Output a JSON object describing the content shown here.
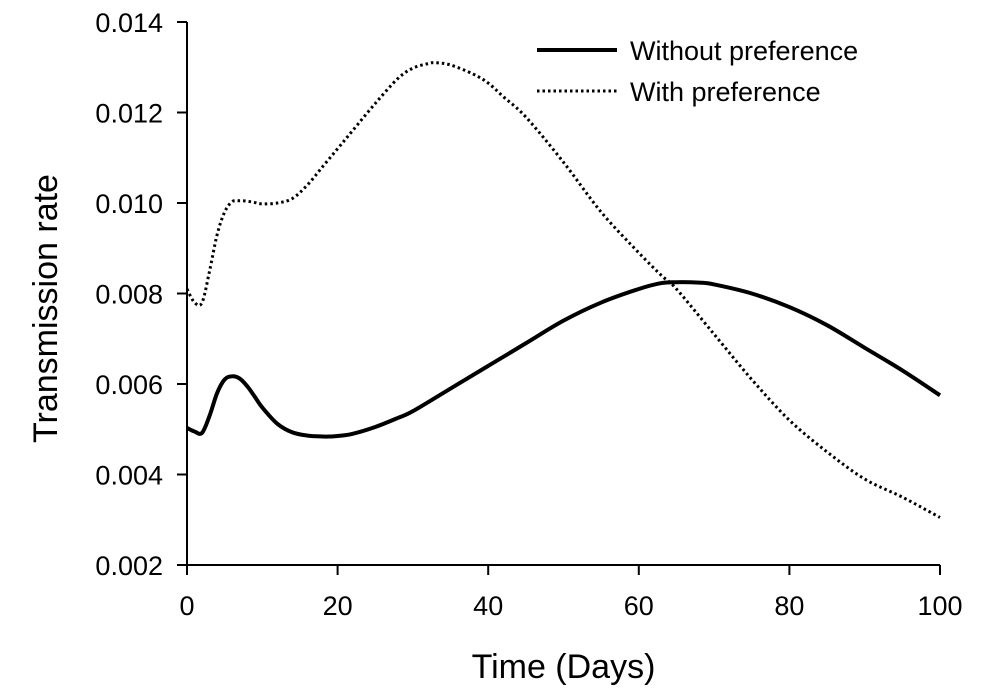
{
  "chart_data": {
    "type": "line",
    "xlabel": "Time (Days)",
    "ylabel": "Transmission rate",
    "xlim": [
      0,
      100
    ],
    "ylim": [
      0.002,
      0.014
    ],
    "xticks": [
      0,
      20,
      40,
      60,
      80,
      100
    ],
    "xtick_labels": [
      "0",
      "20",
      "40",
      "60",
      "80",
      "100"
    ],
    "yticks": [
      0.002,
      0.004,
      0.006,
      0.008,
      0.01,
      0.012,
      0.014
    ],
    "ytick_labels": [
      "0.002",
      "0.004",
      "0.006",
      "0.008",
      "0.010",
      "0.012",
      "0.014"
    ],
    "grid": false,
    "legend_position": "top-right",
    "series": [
      {
        "name": "Without preference",
        "line_style": "solid",
        "color": "#000000",
        "x": [
          0,
          1,
          2,
          3,
          4,
          5,
          6,
          7,
          8,
          9,
          10,
          12,
          14,
          16,
          18,
          19,
          20,
          22,
          25,
          28,
          30,
          35,
          40,
          45,
          50,
          55,
          60,
          63,
          65,
          68,
          70,
          75,
          80,
          85,
          90,
          95,
          100
        ],
        "y": [
          0.00503,
          0.00495,
          0.00492,
          0.0053,
          0.0058,
          0.0061,
          0.00617,
          0.00612,
          0.00595,
          0.00572,
          0.00548,
          0.00512,
          0.00493,
          0.00486,
          0.00484,
          0.00484,
          0.00485,
          0.0049,
          0.00505,
          0.00525,
          0.0054,
          0.0059,
          0.0064,
          0.0069,
          0.0074,
          0.0078,
          0.0081,
          0.00823,
          0.00825,
          0.00824,
          0.0082,
          0.008,
          0.0077,
          0.0073,
          0.0068,
          0.0063,
          0.00575
        ]
      },
      {
        "name": "With preference",
        "line_style": "dotted",
        "color": "#000000",
        "x": [
          0,
          1,
          2,
          3,
          4,
          5,
          6,
          7,
          8,
          9,
          10,
          12,
          14,
          16,
          18,
          20,
          22,
          25,
          28,
          30,
          32,
          33,
          35,
          38,
          40,
          42,
          45,
          50,
          55,
          60,
          63,
          65,
          70,
          75,
          80,
          85,
          90,
          95,
          100
        ],
        "y": [
          0.0081,
          0.0078,
          0.0078,
          0.0085,
          0.0093,
          0.0098,
          0.01003,
          0.01005,
          0.01004,
          0.01001,
          0.00998,
          0.01,
          0.0101,
          0.0104,
          0.0108,
          0.0112,
          0.0116,
          0.0122,
          0.01275,
          0.01298,
          0.01308,
          0.0131,
          0.01305,
          0.01285,
          0.01265,
          0.01235,
          0.0119,
          0.0109,
          0.0098,
          0.0089,
          0.0084,
          0.0081,
          0.0071,
          0.0061,
          0.0052,
          0.0045,
          0.0039,
          0.0035,
          0.00305
        ]
      }
    ]
  }
}
